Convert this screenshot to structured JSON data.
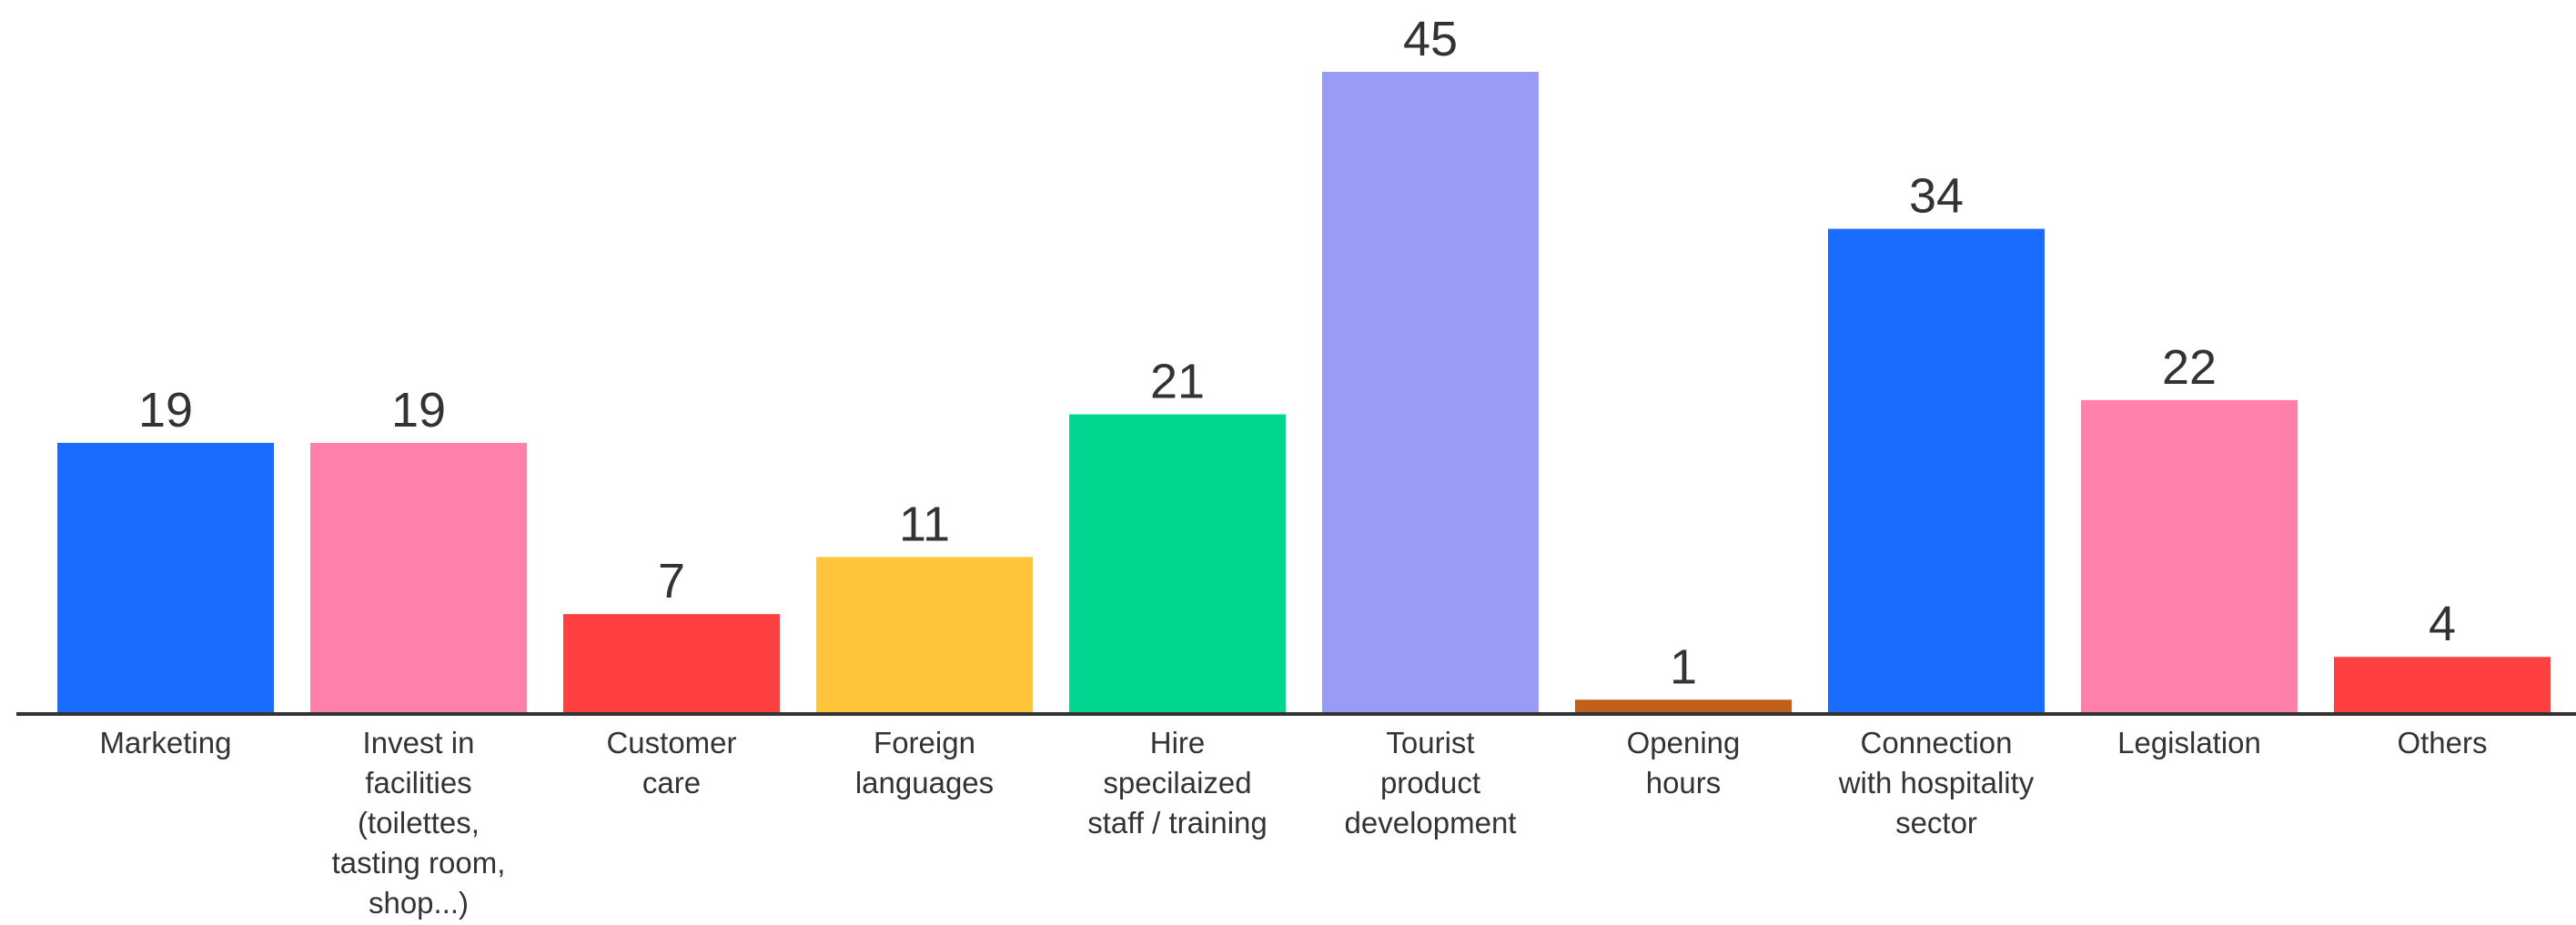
{
  "chart_data": {
    "type": "bar",
    "categories": [
      "Marketing",
      "Invest in facilities (toilettes, tasting room, shop...)",
      "Customer care",
      "Foreign languages",
      "Hire specilaized staff / training",
      "Tourist product development",
      "Opening hours",
      "Connection with hospitality sector",
      "Legislation",
      "Others"
    ],
    "values": [
      19,
      19,
      7,
      11,
      21,
      45,
      1,
      34,
      22,
      4
    ],
    "colors": [
      "#1a6bff",
      "#ff80aa",
      "#ff4040",
      "#ffc53a",
      "#00d68f",
      "#989cf5",
      "#c0601a",
      "#1a6bff",
      "#ff80aa",
      "#ff4040"
    ]
  }
}
